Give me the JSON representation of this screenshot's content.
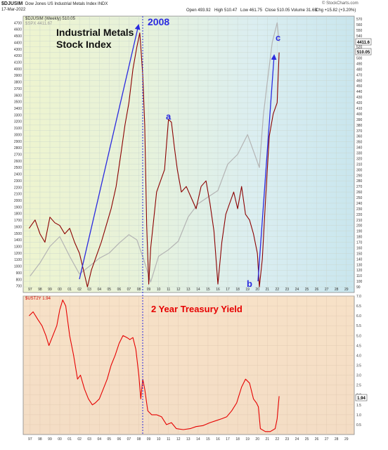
{
  "header": {
    "symbol": "$DJUSIM",
    "description": "Dow Jones US Industrial Metals Index INDX",
    "date": "17-Mar-2022",
    "open": "Open 493.92",
    "high": "High 510.47",
    "low": "Low 461.75",
    "close": "Close 510.05",
    "volume": "Volume 31.6B",
    "change": "Chg +15.82 (+3.20%)",
    "source": "© StockCharts.com"
  },
  "chart_data": [
    {
      "type": "line",
      "legend": [
        "$DJUSIM (Weekly) 510.05",
        "$SPX 4411.67"
      ],
      "title": "Industrial Metals Stock Index",
      "annotations": [
        "2008",
        "a",
        "b",
        "c"
      ],
      "left_axis": {
        "range": [
          600,
          4800
        ],
        "ticks": [
          700,
          800,
          900,
          1000,
          1100,
          1200,
          1300,
          1400,
          1500,
          1600,
          1700,
          1800,
          1900,
          2000,
          2100,
          2200,
          2300,
          2400,
          2500,
          2600,
          2700,
          2800,
          2900,
          3000,
          3100,
          3200,
          3300,
          3400,
          3500,
          3600,
          3700,
          3800,
          3900,
          4000,
          4100,
          4200,
          4300,
          4400,
          4500,
          4600,
          4700
        ]
      },
      "right_axis": {
        "range": [
          80,
          575
        ],
        "ticks": [
          90,
          100,
          110,
          120,
          130,
          140,
          150,
          160,
          170,
          180,
          190,
          200,
          210,
          220,
          230,
          240,
          250,
          260,
          270,
          280,
          290,
          300,
          310,
          320,
          330,
          340,
          350,
          360,
          370,
          380,
          390,
          400,
          410,
          420,
          430,
          440,
          450,
          460,
          470,
          480,
          490,
          500,
          510,
          520,
          530,
          540,
          550,
          560,
          570
        ]
      },
      "price_tags": [
        "4411.6",
        "510.05"
      ],
      "x_ticks": [
        "97",
        "98",
        "99",
        "00",
        "01",
        "02",
        "03",
        "04",
        "05",
        "06",
        "07",
        "08",
        "09",
        "10",
        "11",
        "12",
        "13",
        "14",
        "15",
        "16",
        "17",
        "18",
        "19",
        "20",
        "21",
        "22",
        "23",
        "24",
        "25",
        "26",
        "27",
        "28",
        "29"
      ],
      "series": [
        {
          "name": "$DJUSIM (Weekly) 510.05",
          "color": "#8b0000",
          "x": [
            1996.9,
            1997.5,
            1998.0,
            1998.5,
            1999.0,
            1999.5,
            2000.0,
            2000.5,
            2001.0,
            2001.5,
            2002.0,
            2002.4,
            2002.8,
            2003.2,
            2003.7,
            2004.2,
            2004.7,
            2005.2,
            2005.7,
            2006.2,
            2006.6,
            2007.0,
            2007.4,
            2007.8,
            2008.1,
            2008.4,
            2008.6,
            2008.8,
            2009.0,
            2009.2,
            2009.5,
            2009.8,
            2010.2,
            2010.6,
            2011.0,
            2011.3,
            2011.6,
            2011.9,
            2012.3,
            2012.8,
            2013.3,
            2013.8,
            2014.3,
            2014.8,
            2015.2,
            2015.6,
            2016.0,
            2016.4,
            2016.8,
            2017.2,
            2017.6,
            2018.0,
            2018.4,
            2018.8,
            2019.2,
            2019.6,
            2020.0,
            2020.2,
            2020.5,
            2020.8,
            2021.2,
            2021.6,
            2022.0,
            2022.2
          ],
          "values": [
            195,
            210,
            185,
            170,
            215,
            205,
            200,
            185,
            195,
            170,
            150,
            120,
            90,
            120,
            145,
            170,
            200,
            230,
            270,
            330,
            380,
            420,
            480,
            520,
            545,
            470,
            380,
            200,
            95,
            160,
            210,
            260,
            280,
            300,
            390,
            385,
            340,
            300,
            260,
            270,
            250,
            230,
            270,
            280,
            240,
            190,
            95,
            170,
            220,
            240,
            260,
            230,
            270,
            220,
            210,
            185,
            150,
            90,
            140,
            240,
            360,
            400,
            420,
            510
          ]
        },
        {
          "name": "$SPX 4411.67",
          "color": "#b4b4b4",
          "x": [
            1997,
            1998,
            1999,
            2000,
            2001,
            2002,
            2003,
            2004,
            2005,
            2006,
            2007,
            2007.8,
            2008.5,
            2009.2,
            2010,
            2011,
            2012,
            2013,
            2014,
            2015,
            2016,
            2017,
            2018,
            2019,
            2020.2,
            2020.6,
            2021,
            2021.5,
            2022.0,
            2022.2
          ],
          "values": [
            850,
            1050,
            1300,
            1450,
            1150,
            880,
            1000,
            1120,
            1200,
            1350,
            1480,
            1400,
            1100,
            760,
            1150,
            1250,
            1380,
            1750,
            1950,
            2050,
            2150,
            2550,
            2700,
            3000,
            2500,
            3300,
            3800,
            4400,
            4700,
            4411.67
          ]
        }
      ]
    },
    {
      "type": "line",
      "legend": [
        "$UST2Y 1.94"
      ],
      "title": "2 Year Treasury Yield",
      "y_axis": {
        "range": [
          0,
          7
        ],
        "ticks": [
          0.5,
          1.0,
          1.5,
          2.0,
          2.5,
          3.0,
          3.5,
          4.0,
          4.5,
          5.0,
          5.5,
          6.0,
          6.5,
          7.0
        ]
      },
      "price_tags": [
        "1.94"
      ],
      "series": [
        {
          "name": "$UST2Y 1.94",
          "color": "#e60000",
          "x": [
            1996.9,
            1997.3,
            1997.8,
            1998.2,
            1998.6,
            1998.9,
            1999.3,
            1999.7,
            2000.0,
            2000.3,
            2000.6,
            2001.0,
            2001.4,
            2001.8,
            2002.1,
            2002.5,
            2002.9,
            2003.3,
            2003.6,
            2004.0,
            2004.4,
            2004.8,
            2005.2,
            2005.6,
            2006.0,
            2006.4,
            2006.8,
            2007.1,
            2007.4,
            2007.7,
            2008.0,
            2008.2,
            2008.4,
            2008.6,
            2008.9,
            2009.3,
            2009.8,
            2010.3,
            2010.8,
            2011.3,
            2011.8,
            2012.5,
            2013.2,
            2013.8,
            2014.5,
            2015.2,
            2015.8,
            2016.4,
            2016.9,
            2017.4,
            2017.9,
            2018.4,
            2018.8,
            2019.2,
            2019.6,
            2019.9,
            2020.1,
            2020.3,
            2020.8,
            2021.3,
            2021.8,
            2022.0,
            2022.2
          ],
          "values": [
            6.0,
            6.2,
            5.8,
            5.5,
            5.0,
            4.5,
            5.0,
            5.5,
            6.3,
            6.8,
            6.5,
            5.0,
            4.0,
            2.8,
            3.0,
            2.3,
            1.8,
            1.5,
            1.6,
            1.8,
            2.3,
            2.8,
            3.5,
            4.0,
            4.6,
            5.0,
            4.9,
            4.8,
            4.9,
            4.3,
            3.0,
            1.8,
            2.8,
            2.3,
            1.2,
            1.0,
            1.0,
            0.9,
            0.5,
            0.6,
            0.3,
            0.25,
            0.3,
            0.4,
            0.45,
            0.6,
            0.7,
            0.8,
            0.9,
            1.2,
            1.6,
            2.4,
            2.8,
            2.6,
            1.8,
            1.6,
            1.4,
            0.3,
            0.15,
            0.15,
            0.3,
            0.8,
            1.94
          ]
        }
      ]
    }
  ]
}
